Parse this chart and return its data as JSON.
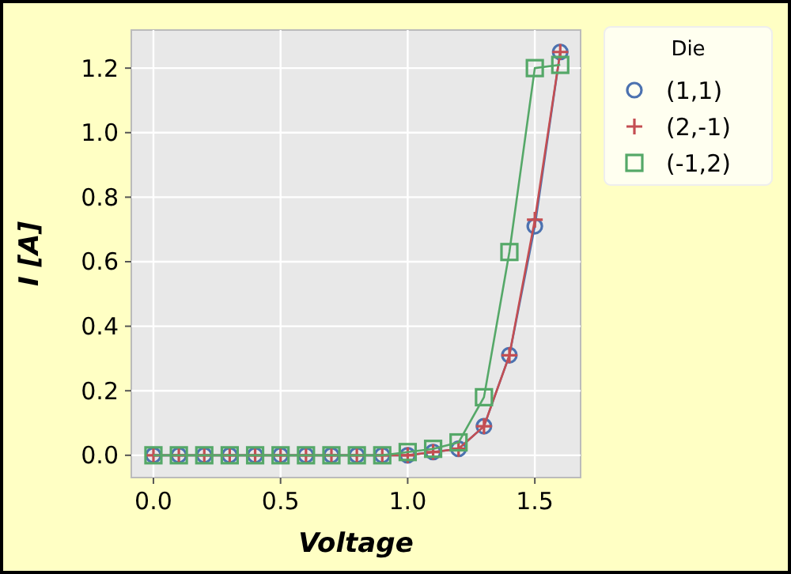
{
  "chart_data": {
    "type": "line",
    "xlabel": "Voltage",
    "ylabel": "I [A]",
    "legend_title": "Die",
    "legend": "right",
    "grid": true,
    "x": [
      0,
      0.1,
      0.2,
      0.3,
      0.4,
      0.5,
      0.6,
      0.7,
      0.8,
      0.9,
      1.0,
      1.1,
      1.2,
      1.3,
      1.4,
      1.5,
      1.6
    ],
    "xlim": [
      -0.087,
      1.68
    ],
    "xticks": [
      {
        "value": 0,
        "label": "0.0"
      },
      {
        "value": 0.5,
        "label": "0.5"
      },
      {
        "value": 1,
        "label": "1.0"
      },
      {
        "value": 1.5,
        "label": "1.5"
      }
    ],
    "ylim": [
      -0.069,
      1.318
    ],
    "yticks": [
      {
        "value": 0,
        "label": "0.0"
      },
      {
        "value": 0.2,
        "label": "0.2"
      },
      {
        "value": 0.4,
        "label": "0.4"
      },
      {
        "value": 0.6,
        "label": "0.6"
      },
      {
        "value": 0.8,
        "label": "0.8"
      },
      {
        "value": 1,
        "label": "1.0"
      },
      {
        "value": 1.2,
        "label": "1.2"
      }
    ],
    "series": [
      {
        "name": "(1,1)",
        "color": "#4c72b0",
        "marker": "circle",
        "values": [
          0,
          0,
          0,
          0,
          0,
          0,
          0,
          0,
          0,
          0,
          0,
          0.01,
          0.02,
          0.09,
          0.31,
          0.71,
          1.25
        ]
      },
      {
        "name": "(2,-1)",
        "color": "#c44e52",
        "marker": "cross",
        "values": [
          0,
          0,
          0,
          0,
          0,
          0,
          0,
          0,
          0,
          0,
          0,
          0.01,
          0.02,
          0.09,
          0.31,
          0.73,
          1.25
        ]
      },
      {
        "name": "(-1,2)",
        "color": "#55a868",
        "marker": "square",
        "values": [
          0,
          0,
          0,
          0,
          0,
          0,
          0,
          0,
          0,
          0,
          0.01,
          0.02,
          0.04,
          0.18,
          0.63,
          1.2,
          1.21
        ]
      }
    ]
  }
}
